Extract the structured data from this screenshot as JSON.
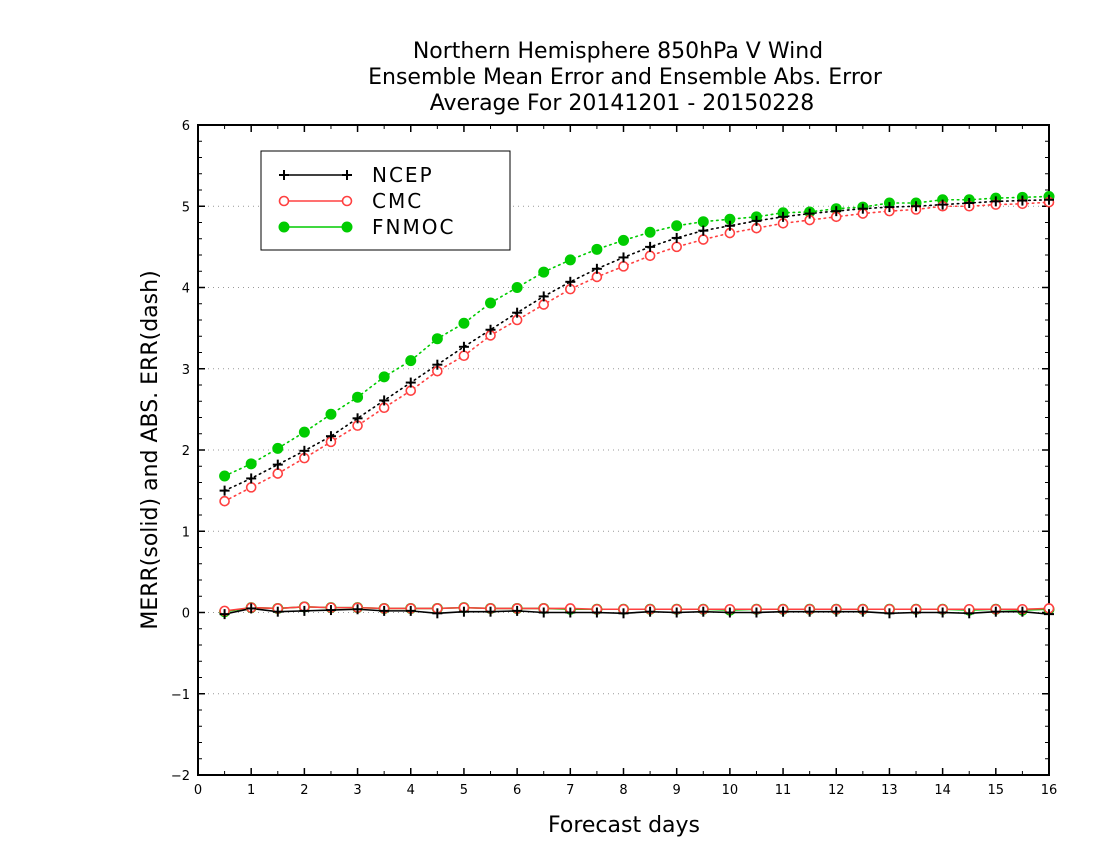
{
  "chart_data": {
    "type": "line",
    "title": [
      "Northern Hemisphere 850hPa V Wind",
      "Ensemble Mean Error and Ensemble Abs. Error",
      "Average For 20141201 - 20150228"
    ],
    "xlabel": "Forecast days",
    "ylabel": "MERR(solid) and ABS. ERR(dash)",
    "xlim": [
      0,
      16
    ],
    "ylim": [
      -2,
      6
    ],
    "xticks": [
      0,
      1,
      2,
      3,
      4,
      5,
      6,
      7,
      8,
      9,
      10,
      11,
      12,
      13,
      14,
      15,
      16
    ],
    "yticks": [
      -2,
      -1,
      0,
      1,
      2,
      3,
      4,
      5,
      6
    ],
    "grid": "horizontal dotted",
    "legend": "top-left",
    "x": [
      0.5,
      1,
      1.5,
      2,
      2.5,
      3,
      3.5,
      4,
      4.5,
      5,
      5.5,
      6,
      6.5,
      7,
      7.5,
      8,
      8.5,
      9,
      9.5,
      10,
      10.5,
      11,
      11.5,
      12,
      12.5,
      13,
      13.5,
      14,
      14.5,
      15,
      15.5,
      16
    ],
    "series": [
      {
        "name": "NCEP",
        "color": "#000000",
        "marker": "plus",
        "abs_err": [
          1.5,
          1.65,
          1.82,
          1.99,
          2.17,
          2.39,
          2.61,
          2.83,
          3.05,
          3.27,
          3.48,
          3.69,
          3.89,
          4.07,
          4.23,
          4.37,
          4.5,
          4.61,
          4.7,
          4.76,
          4.82,
          4.87,
          4.91,
          4.94,
          4.97,
          4.99,
          5.0,
          5.02,
          5.04,
          5.06,
          5.07,
          5.08
        ],
        "mean_err": [
          -0.02,
          0.05,
          0.01,
          0.02,
          0.03,
          0.04,
          0.02,
          0.02,
          -0.01,
          0.01,
          0.01,
          0.02,
          0.0,
          0.0,
          0.0,
          -0.01,
          0.01,
          0.0,
          0.01,
          0.0,
          0.0,
          0.01,
          0.01,
          0.01,
          0.01,
          -0.01,
          0.0,
          0.0,
          -0.01,
          0.01,
          0.01,
          -0.02
        ]
      },
      {
        "name": "CMC",
        "color": "#ff4040",
        "marker": "open-circle",
        "abs_err": [
          1.37,
          1.54,
          1.71,
          1.9,
          2.1,
          2.3,
          2.52,
          2.73,
          2.97,
          3.16,
          3.41,
          3.6,
          3.79,
          3.98,
          4.13,
          4.26,
          4.39,
          4.5,
          4.59,
          4.67,
          4.73,
          4.79,
          4.83,
          4.87,
          4.91,
          4.94,
          4.96,
          5.0,
          5.0,
          5.02,
          5.03,
          5.05
        ],
        "mean_err": [
          0.02,
          0.06,
          0.05,
          0.07,
          0.06,
          0.06,
          0.05,
          0.05,
          0.05,
          0.06,
          0.05,
          0.05,
          0.05,
          0.05,
          0.04,
          0.04,
          0.04,
          0.04,
          0.04,
          0.04,
          0.04,
          0.04,
          0.04,
          0.04,
          0.04,
          0.04,
          0.04,
          0.04,
          0.04,
          0.04,
          0.04,
          0.05
        ]
      },
      {
        "name": "FNMOC",
        "color": "#00cc00",
        "marker": "filled-circle",
        "abs_err": [
          1.68,
          1.83,
          2.02,
          2.22,
          2.44,
          2.65,
          2.9,
          3.1,
          3.37,
          3.56,
          3.81,
          4.0,
          4.19,
          4.34,
          4.47,
          4.58,
          4.68,
          4.76,
          4.81,
          4.84,
          4.87,
          4.92,
          4.93,
          4.97,
          4.99,
          5.04,
          5.04,
          5.08,
          5.08,
          5.1,
          5.11,
          5.12
        ],
        "mean_err": [
          0.01,
          0.06,
          0.05,
          0.07,
          0.06,
          0.06,
          0.05,
          0.05,
          0.05,
          0.06,
          0.05,
          0.05,
          0.05,
          0.04,
          0.04,
          0.04,
          0.04,
          0.04,
          0.04,
          0.03,
          0.04,
          0.04,
          0.04,
          0.04,
          0.04,
          0.04,
          0.04,
          0.04,
          0.03,
          0.04,
          0.03,
          0.04
        ]
      }
    ]
  }
}
